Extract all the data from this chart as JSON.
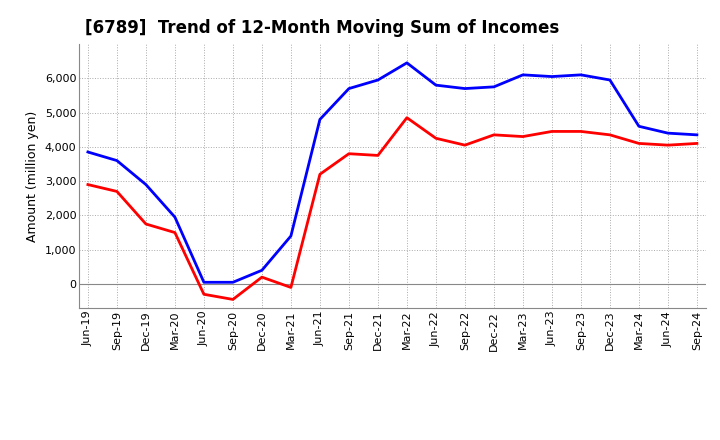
{
  "title": "[6789]  Trend of 12-Month Moving Sum of Incomes",
  "ylabel": "Amount (million yen)",
  "x_labels": [
    "Jun-19",
    "Sep-19",
    "Dec-19",
    "Mar-20",
    "Jun-20",
    "Sep-20",
    "Dec-20",
    "Mar-21",
    "Jun-21",
    "Sep-21",
    "Dec-21",
    "Mar-22",
    "Jun-22",
    "Sep-22",
    "Dec-22",
    "Mar-23",
    "Jun-23",
    "Sep-23",
    "Dec-23",
    "Mar-24",
    "Jun-24",
    "Sep-24"
  ],
  "ordinary_income": [
    3850,
    3600,
    2900,
    1950,
    50,
    50,
    400,
    1400,
    4800,
    5700,
    5950,
    6450,
    5800,
    5700,
    5750,
    6100,
    6050,
    6100,
    5950,
    4600,
    4400,
    4350
  ],
  "net_income": [
    2900,
    2700,
    1750,
    1500,
    -300,
    -450,
    200,
    -100,
    3200,
    3800,
    3750,
    4850,
    4250,
    4050,
    4350,
    4300,
    4450,
    4450,
    4350,
    4100,
    4050,
    4100
  ],
  "ordinary_color": "#0000FF",
  "net_color": "#FF0000",
  "ylim_min": -700,
  "ylim_max": 7000,
  "yticks": [
    0,
    1000,
    2000,
    3000,
    4000,
    5000,
    6000
  ],
  "background_color": "#FFFFFF",
  "grid_color": "#AAAAAA",
  "line_width": 2.0,
  "title_fontsize": 12,
  "ylabel_fontsize": 9,
  "tick_fontsize": 8,
  "legend_fontsize": 9
}
